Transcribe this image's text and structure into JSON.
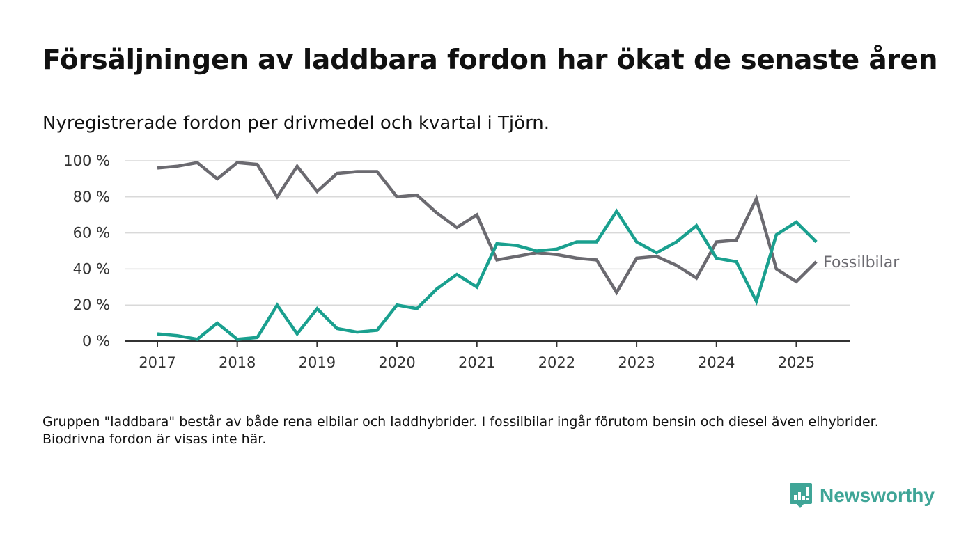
{
  "title": "Försäljningen av laddbara fordon har ökat de senaste åren",
  "subtitle": "Nyregistrerade fordon per drivmedel och kvartal i Tjörn.",
  "note": "Gruppen \"laddbara\" består av både rena elbilar och laddhybrider. I fossilbilar ingår förutom bensin och diesel även elhybrider. Biodrivna fordon är visas inte här.",
  "brand": {
    "name": "Newsworthy",
    "icon": "newsworthy-logo-icon",
    "color": "#3fa597"
  },
  "chart_data": {
    "type": "line",
    "x_unit": "quarter",
    "x": [
      "2017Q1",
      "2017Q2",
      "2017Q3",
      "2017Q4",
      "2018Q1",
      "2018Q2",
      "2018Q3",
      "2018Q4",
      "2019Q1",
      "2019Q2",
      "2019Q3",
      "2019Q4",
      "2020Q1",
      "2020Q2",
      "2020Q3",
      "2020Q4",
      "2021Q1",
      "2021Q2",
      "2021Q3",
      "2021Q4",
      "2022Q1",
      "2022Q2",
      "2022Q3",
      "2022Q4",
      "2023Q1",
      "2023Q2",
      "2023Q3",
      "2023Q4",
      "2024Q1",
      "2024Q2",
      "2024Q3",
      "2024Q4",
      "2025Q1",
      "2025Q2"
    ],
    "xticks": [
      "2017",
      "2018",
      "2019",
      "2020",
      "2021",
      "2022",
      "2023",
      "2024",
      "2025"
    ],
    "yticks": [
      "0 %",
      "20 %",
      "40 %",
      "60 %",
      "80 %",
      "100 %"
    ],
    "ylim": [
      0,
      100
    ],
    "grid": true,
    "series": [
      {
        "name": "Fossilbilar",
        "color": "#6b6a70",
        "values": [
          96,
          97,
          99,
          90,
          99,
          98,
          80,
          97,
          83,
          93,
          94,
          94,
          80,
          81,
          71,
          63,
          70,
          45,
          47,
          49,
          48,
          46,
          45,
          27,
          46,
          47,
          42,
          35,
          55,
          56,
          79,
          40,
          33,
          44
        ]
      },
      {
        "name": "",
        "color": "#1aa08f",
        "values": [
          4,
          3,
          1,
          10,
          1,
          2,
          20,
          4,
          18,
          7,
          5,
          6,
          20,
          18,
          29,
          37,
          30,
          54,
          53,
          50,
          51,
          55,
          55,
          72,
          55,
          49,
          55,
          64,
          46,
          44,
          22,
          59,
          66,
          55
        ]
      }
    ]
  }
}
